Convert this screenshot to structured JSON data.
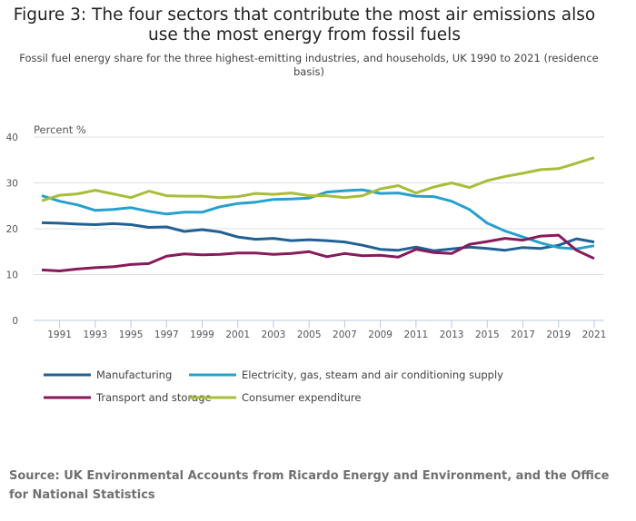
{
  "title": "Figure 3: The four sectors that contribute the most air emissions also use the most energy from fossil fuels",
  "subtitle": "Fossil fuel energy share for the three highest-emitting industries, and households, UK 1990 to 2021 (residence basis)",
  "source": "Source: UK Environmental Accounts from Ricardo Energy and Environment, and the Office for National Statistics",
  "chart_data": {
    "type": "line",
    "ylabel": "Percent %",
    "ylim": [
      0,
      40
    ],
    "yticks": [
      0,
      10,
      20,
      30,
      40
    ],
    "xlim": [
      1990,
      2021
    ],
    "xticks": [
      1991,
      1993,
      1995,
      1997,
      1999,
      2001,
      2003,
      2005,
      2007,
      2009,
      2011,
      2013,
      2015,
      2017,
      2019,
      2021
    ],
    "grid": true,
    "legend_placement": "bottom",
    "x": [
      1990,
      1991,
      1992,
      1993,
      1994,
      1995,
      1996,
      1997,
      1998,
      1999,
      2000,
      2001,
      2002,
      2003,
      2004,
      2005,
      2006,
      2007,
      2008,
      2009,
      2010,
      2011,
      2012,
      2013,
      2014,
      2015,
      2016,
      2017,
      2018,
      2019,
      2020,
      2021
    ],
    "series": [
      {
        "name": "Manufacturing",
        "color": "#206095",
        "values": [
          21.3,
          21.2,
          21.0,
          20.9,
          21.1,
          20.9,
          20.3,
          20.4,
          19.4,
          19.8,
          19.3,
          18.2,
          17.7,
          17.9,
          17.4,
          17.6,
          17.4,
          17.1,
          16.4,
          15.5,
          15.3,
          16.0,
          15.2,
          15.6,
          16.0,
          15.7,
          15.3,
          15.9,
          15.7,
          16.4,
          17.8,
          17.1
        ]
      },
      {
        "name": "Electricity, gas, steam and air conditioning supply",
        "color": "#27a0cc",
        "values": [
          27.2,
          26.0,
          25.2,
          24.0,
          24.2,
          24.6,
          23.8,
          23.2,
          23.6,
          23.6,
          24.8,
          25.5,
          25.8,
          26.4,
          26.5,
          26.7,
          28.0,
          28.3,
          28.5,
          27.7,
          27.8,
          27.1,
          27.0,
          26.0,
          24.2,
          21.2,
          19.5,
          18.2,
          16.9,
          15.9,
          15.6,
          16.3
        ]
      },
      {
        "name": "Transport and storage",
        "color": "#871a5b",
        "values": [
          11.0,
          10.8,
          11.2,
          11.5,
          11.7,
          12.2,
          12.4,
          14.0,
          14.5,
          14.3,
          14.4,
          14.7,
          14.7,
          14.4,
          14.6,
          15.0,
          13.9,
          14.6,
          14.1,
          14.2,
          13.8,
          15.5,
          14.8,
          14.6,
          16.6,
          17.2,
          17.9,
          17.5,
          18.4,
          18.6,
          15.3,
          13.5
        ]
      },
      {
        "name": "Consumer expenditure",
        "color": "#a8bd3a",
        "values": [
          26.1,
          27.3,
          27.6,
          28.4,
          27.6,
          26.8,
          28.2,
          27.2,
          27.1,
          27.1,
          26.8,
          27.0,
          27.7,
          27.5,
          27.8,
          27.2,
          27.2,
          26.8,
          27.2,
          28.7,
          29.4,
          27.8,
          29.1,
          30.0,
          29.0,
          30.5,
          31.4,
          32.1,
          32.9,
          33.1,
          34.3,
          35.5
        ]
      }
    ]
  }
}
